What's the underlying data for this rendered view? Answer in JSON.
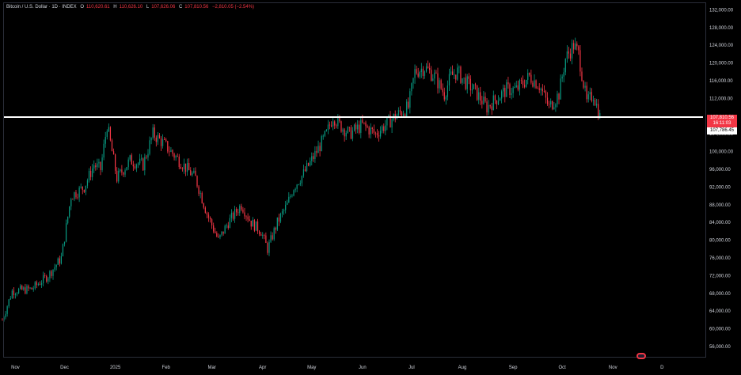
{
  "header": {
    "title": "Bitcoin / U.S. Dollar · 1D · INDEX",
    "open_key": "O",
    "open": "110,620.61",
    "high_key": "H",
    "high": "110,626.10",
    "low_key": "L",
    "low": "107,626.06",
    "close_key": "C",
    "close": "107,810.56",
    "change": "−2,810.05 (−2.54%)"
  },
  "price_labels": {
    "last_price": "107,810.56",
    "countdown": "16:11:03",
    "line_level": "107,786.45"
  },
  "colors": {
    "background": "#000000",
    "up": "#089981",
    "down": "#f23645",
    "horizontal_line": "#ffffff"
  },
  "chart_data": {
    "type": "candlestick",
    "ylim": [
      53500,
      133500
    ],
    "y_ticks": [
      "132,000.00",
      "128,000.00",
      "124,000.00",
      "120,000.00",
      "116,000.00",
      "112,000.00",
      "104,000.00",
      "100,000.00",
      "96,000.00",
      "92,000.00",
      "88,000.00",
      "84,000.00",
      "80,000.00",
      "76,000.00",
      "72,000.00",
      "68,000.00",
      "64,000.00",
      "60,000.00",
      "56,000.00"
    ],
    "y_tick_values": [
      132000,
      128000,
      124000,
      120000,
      116000,
      112000,
      104000,
      100000,
      96000,
      92000,
      88000,
      84000,
      80000,
      76000,
      72000,
      68000,
      64000,
      60000,
      56000
    ],
    "x_ticks": [
      "Nov",
      "Dec",
      "2025",
      "Feb",
      "Mar",
      "Apr",
      "May",
      "Jun",
      "Jul",
      "Aug",
      "Sep",
      "Oct",
      "Nov",
      "D"
    ],
    "x_tick_days": [
      0,
      30,
      61,
      92,
      120,
      151,
      181,
      212,
      242,
      273,
      304,
      334,
      365,
      395
    ],
    "horizontal_line": 107786.45,
    "anchors": [
      [
        -8,
        62000
      ],
      [
        -2,
        68500
      ],
      [
        10,
        69000
      ],
      [
        20,
        72000
      ],
      [
        28,
        76000
      ],
      [
        34,
        90000
      ],
      [
        42,
        92000
      ],
      [
        48,
        97000
      ],
      [
        52,
        96000
      ],
      [
        56,
        106000
      ],
      [
        62,
        94000
      ],
      [
        70,
        98000
      ],
      [
        78,
        97000
      ],
      [
        84,
        104000
      ],
      [
        90,
        102000
      ],
      [
        100,
        98000
      ],
      [
        105,
        96000
      ],
      [
        110,
        94000
      ],
      [
        117,
        86000
      ],
      [
        124,
        80000
      ],
      [
        130,
        84000
      ],
      [
        138,
        88000
      ],
      [
        144,
        84000
      ],
      [
        150,
        82000
      ],
      [
        154,
        78000
      ],
      [
        160,
        84000
      ],
      [
        166,
        88000
      ],
      [
        170,
        92000
      ],
      [
        176,
        95000
      ],
      [
        184,
        100000
      ],
      [
        190,
        104000
      ],
      [
        194,
        108000
      ],
      [
        198,
        106000
      ],
      [
        204,
        104000
      ],
      [
        212,
        106000
      ],
      [
        220,
        104000
      ],
      [
        226,
        106000
      ],
      [
        232,
        108000
      ],
      [
        240,
        110000
      ],
      [
        244,
        118000
      ],
      [
        250,
        119000
      ],
      [
        256,
        117000
      ],
      [
        262,
        113000
      ],
      [
        266,
        117000
      ],
      [
        270,
        118000
      ],
      [
        274,
        116000
      ],
      [
        280,
        114000
      ],
      [
        288,
        110000
      ],
      [
        294,
        112000
      ],
      [
        300,
        114000
      ],
      [
        306,
        114000
      ],
      [
        314,
        117000
      ],
      [
        320,
        115000
      ],
      [
        326,
        110000
      ],
      [
        332,
        113000
      ],
      [
        336,
        121000
      ],
      [
        341,
        124000
      ],
      [
        344,
        122000
      ],
      [
        349,
        111000
      ],
      [
        353,
        113000
      ],
      [
        357,
        107800
      ]
    ]
  }
}
